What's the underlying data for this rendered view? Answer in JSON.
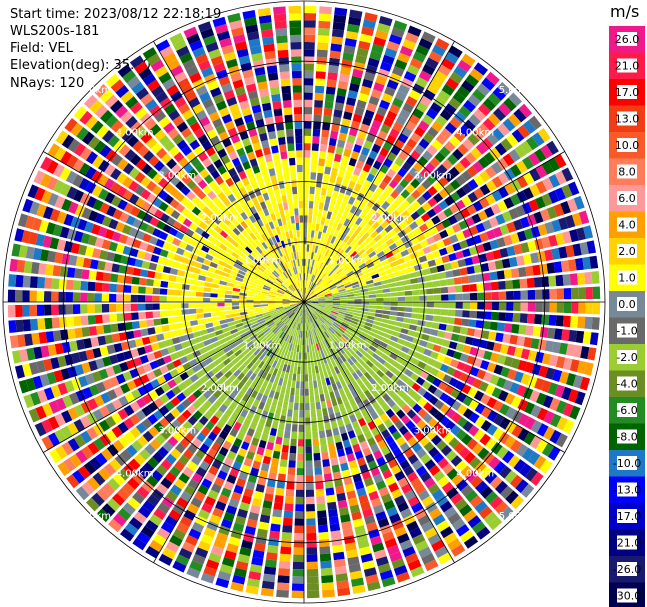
{
  "header": {
    "start_time": "Start time: 2023/08/12 22:18:19",
    "instrument": "WLS200s-181",
    "field": "Field: VEL",
    "elevation": "Elevation(deg): 35.30",
    "nrays": "NRays: 120"
  },
  "chart_data": {
    "type": "heatmap",
    "projection": "polar PPI",
    "field": "VEL",
    "nrays": 120,
    "range_rings_km": [
      1.0,
      2.0,
      3.0,
      4.0,
      5.0
    ],
    "range_ring_labels": [
      "1.00km",
      "2.00km",
      "3.00km",
      "4.00km",
      "5.00km"
    ],
    "max_range_km": 5.0,
    "colorbar": {
      "unit": "m/s",
      "ticks": [
        "26.0",
        "21.0",
        "17.0",
        "13.0",
        "10.0",
        "8.0",
        "6.0",
        "4.0",
        "2.0",
        "1.0",
        "0.0",
        "-1.0",
        "-2.0",
        "-4.0",
        "-6.0",
        "-8.0",
        "-10.0",
        "-13.0",
        "-17.0",
        "-21.0",
        "-26.0",
        "-30.0"
      ],
      "colors": [
        "#f0198c",
        "#ff1a4a",
        "#ff0000",
        "#f23c14",
        "#fa5a28",
        "#ff7d5a",
        "#ff9999",
        "#ffa000",
        "#ffd200",
        "#ffff00",
        "#778899",
        "#696969",
        "#9acd32",
        "#6b8e23",
        "#228b22",
        "#006400",
        "#1e78c8",
        "#0000ff",
        "#0000c8",
        "#000080",
        "#191970",
        "#000050"
      ]
    },
    "sectors": {
      "near_range_km": 2.35,
      "north_west_half": "0.0 to 2.0 m/s (yellow, grey)",
      "south_east_half": "-1.0 to -4.0 m/s (yellow-green, olive)",
      "far_range": "noise: full colour scale"
    }
  }
}
